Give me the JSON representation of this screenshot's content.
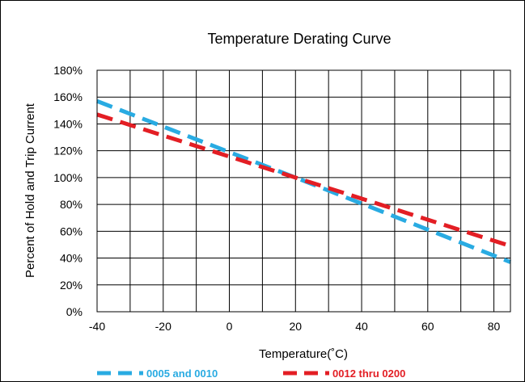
{
  "chart_data": {
    "type": "line",
    "title": "Temperature Derating Curve",
    "xlabel": "Temperature(˚C)",
    "ylabel": "Percent of Hold and Trip Current",
    "xlim": [
      -40,
      85
    ],
    "ylim": [
      0,
      180
    ],
    "x_ticks": [
      "-40",
      "-20",
      "0",
      "20",
      "40",
      "60",
      "80"
    ],
    "y_ticks": [
      "0%",
      "20%",
      "40%",
      "60%",
      "80%",
      "100%",
      "120%",
      "140%",
      "160%",
      "180%"
    ],
    "grid": true,
    "legend_position": "bottom",
    "series": [
      {
        "name": "0005 and 0010",
        "color": "#29ABE2",
        "style": "dashed",
        "x": [
          -40,
          20,
          85
        ],
        "y": [
          157,
          100,
          37
        ]
      },
      {
        "name": "0012 thru 0200",
        "color": "#E31E24",
        "style": "dashed",
        "x": [
          -40,
          20,
          85
        ],
        "y": [
          147,
          100,
          49
        ]
      }
    ]
  }
}
